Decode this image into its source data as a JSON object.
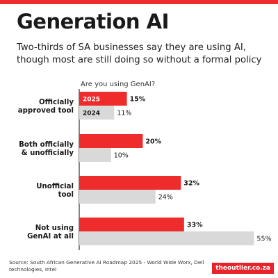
{
  "header": {
    "title": "Generation AI",
    "subtitle": "Two-thirds of SA businesses say they are using AI, though most are still doing so without a formal policy"
  },
  "footer": {
    "source": "Source: South African Generative AI Roadmap 2025 - World Wide Worx, Dell technologies, Intel",
    "brand": "theoutlier.co.za"
  },
  "colors": {
    "accent": "#ee2c2c",
    "secondary": "#d9d9d9",
    "baseline": "#333333",
    "brand_bg": "#e8232a"
  },
  "chart_data": {
    "type": "bar",
    "orientation": "horizontal",
    "title": "Are you using GenAI?",
    "categories": [
      [
        "Officially",
        "approved tool"
      ],
      [
        "Both officially",
        "& unofficially"
      ],
      [
        "Unofficial",
        "tool"
      ],
      [
        "Not using",
        "GenAI at all"
      ]
    ],
    "series": [
      {
        "name": "2025",
        "values": [
          15,
          20,
          32,
          33
        ]
      },
      {
        "name": "2024",
        "values": [
          11,
          10,
          24,
          55
        ]
      }
    ],
    "value_suffix": "%",
    "xlim": [
      0,
      56
    ],
    "legend": "inline-in-first-group",
    "grid": false
  }
}
